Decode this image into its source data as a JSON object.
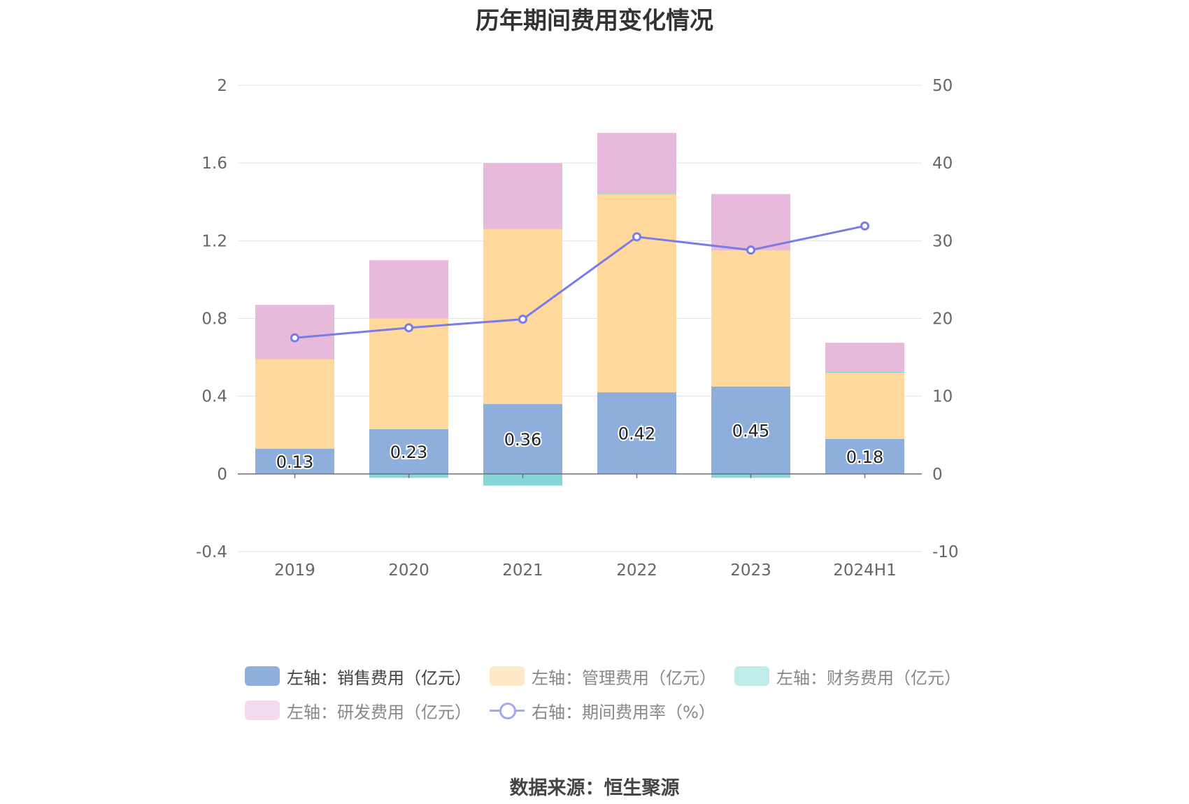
{
  "title": "历年期间费用变化情况",
  "source": "数据来源：恒生聚源",
  "colors": {
    "sales": "#8eaedb",
    "admin": "#fed99b",
    "finance": "#86d6d8",
    "rnd": "#e7b9da",
    "rate_line": "#7b7be8",
    "legend_admin": "#ffe8c7",
    "legend_finance": "#c1ecec",
    "legend_rnd": "#f2dbee"
  },
  "legend": [
    {
      "key": "sales",
      "label": "左轴：销售费用（亿元）",
      "icon": "rect-swatch"
    },
    {
      "key": "admin",
      "label": "左轴：管理费用（亿元）",
      "icon": "rect-swatch"
    },
    {
      "key": "finance",
      "label": "左轴：财务费用（亿元）",
      "icon": "rect-swatch"
    },
    {
      "key": "rnd",
      "label": "左轴：研发费用（亿元）",
      "icon": "rect-swatch"
    },
    {
      "key": "rate",
      "label": "右轴：期间费用率（%）",
      "icon": "line-circle"
    }
  ],
  "chart_data": {
    "type": "bar",
    "stacked": true,
    "categories": [
      "2019",
      "2020",
      "2021",
      "2022",
      "2023",
      "2024H1"
    ],
    "series": [
      {
        "name": "左轴：销售费用（亿元）",
        "axis": "left",
        "values": [
          0.13,
          0.23,
          0.36,
          0.42,
          0.45,
          0.18
        ],
        "labels": [
          "0.13",
          "0.23",
          "0.36",
          "0.42",
          "0.45",
          "0.18"
        ]
      },
      {
        "name": "左轴：管理费用（亿元）",
        "axis": "left",
        "values": [
          0.46,
          0.57,
          0.9,
          1.02,
          0.7,
          0.34
        ]
      },
      {
        "name": "左轴：财务费用（亿元）",
        "axis": "left",
        "values": [
          0.0,
          -0.02,
          -0.06,
          0.005,
          -0.02,
          0.005
        ]
      },
      {
        "name": "左轴：研发费用（亿元）",
        "axis": "left",
        "values": [
          0.28,
          0.3,
          0.34,
          0.31,
          0.29,
          0.15
        ]
      },
      {
        "name": "右轴：期间费用率（%）",
        "axis": "right",
        "type": "line",
        "values": [
          17.5,
          18.8,
          19.9,
          30.5,
          28.8,
          31.9
        ]
      }
    ],
    "y_left": {
      "min": -0.4,
      "max": 2,
      "ticks": [
        "-0.4",
        "0",
        "0.4",
        "0.8",
        "1.2",
        "1.6",
        "2"
      ]
    },
    "y_right": {
      "min": -10,
      "max": 50,
      "ticks": [
        "-10",
        "0",
        "10",
        "20",
        "30",
        "40",
        "50"
      ]
    },
    "grid": true,
    "legend_position": "bottom"
  }
}
